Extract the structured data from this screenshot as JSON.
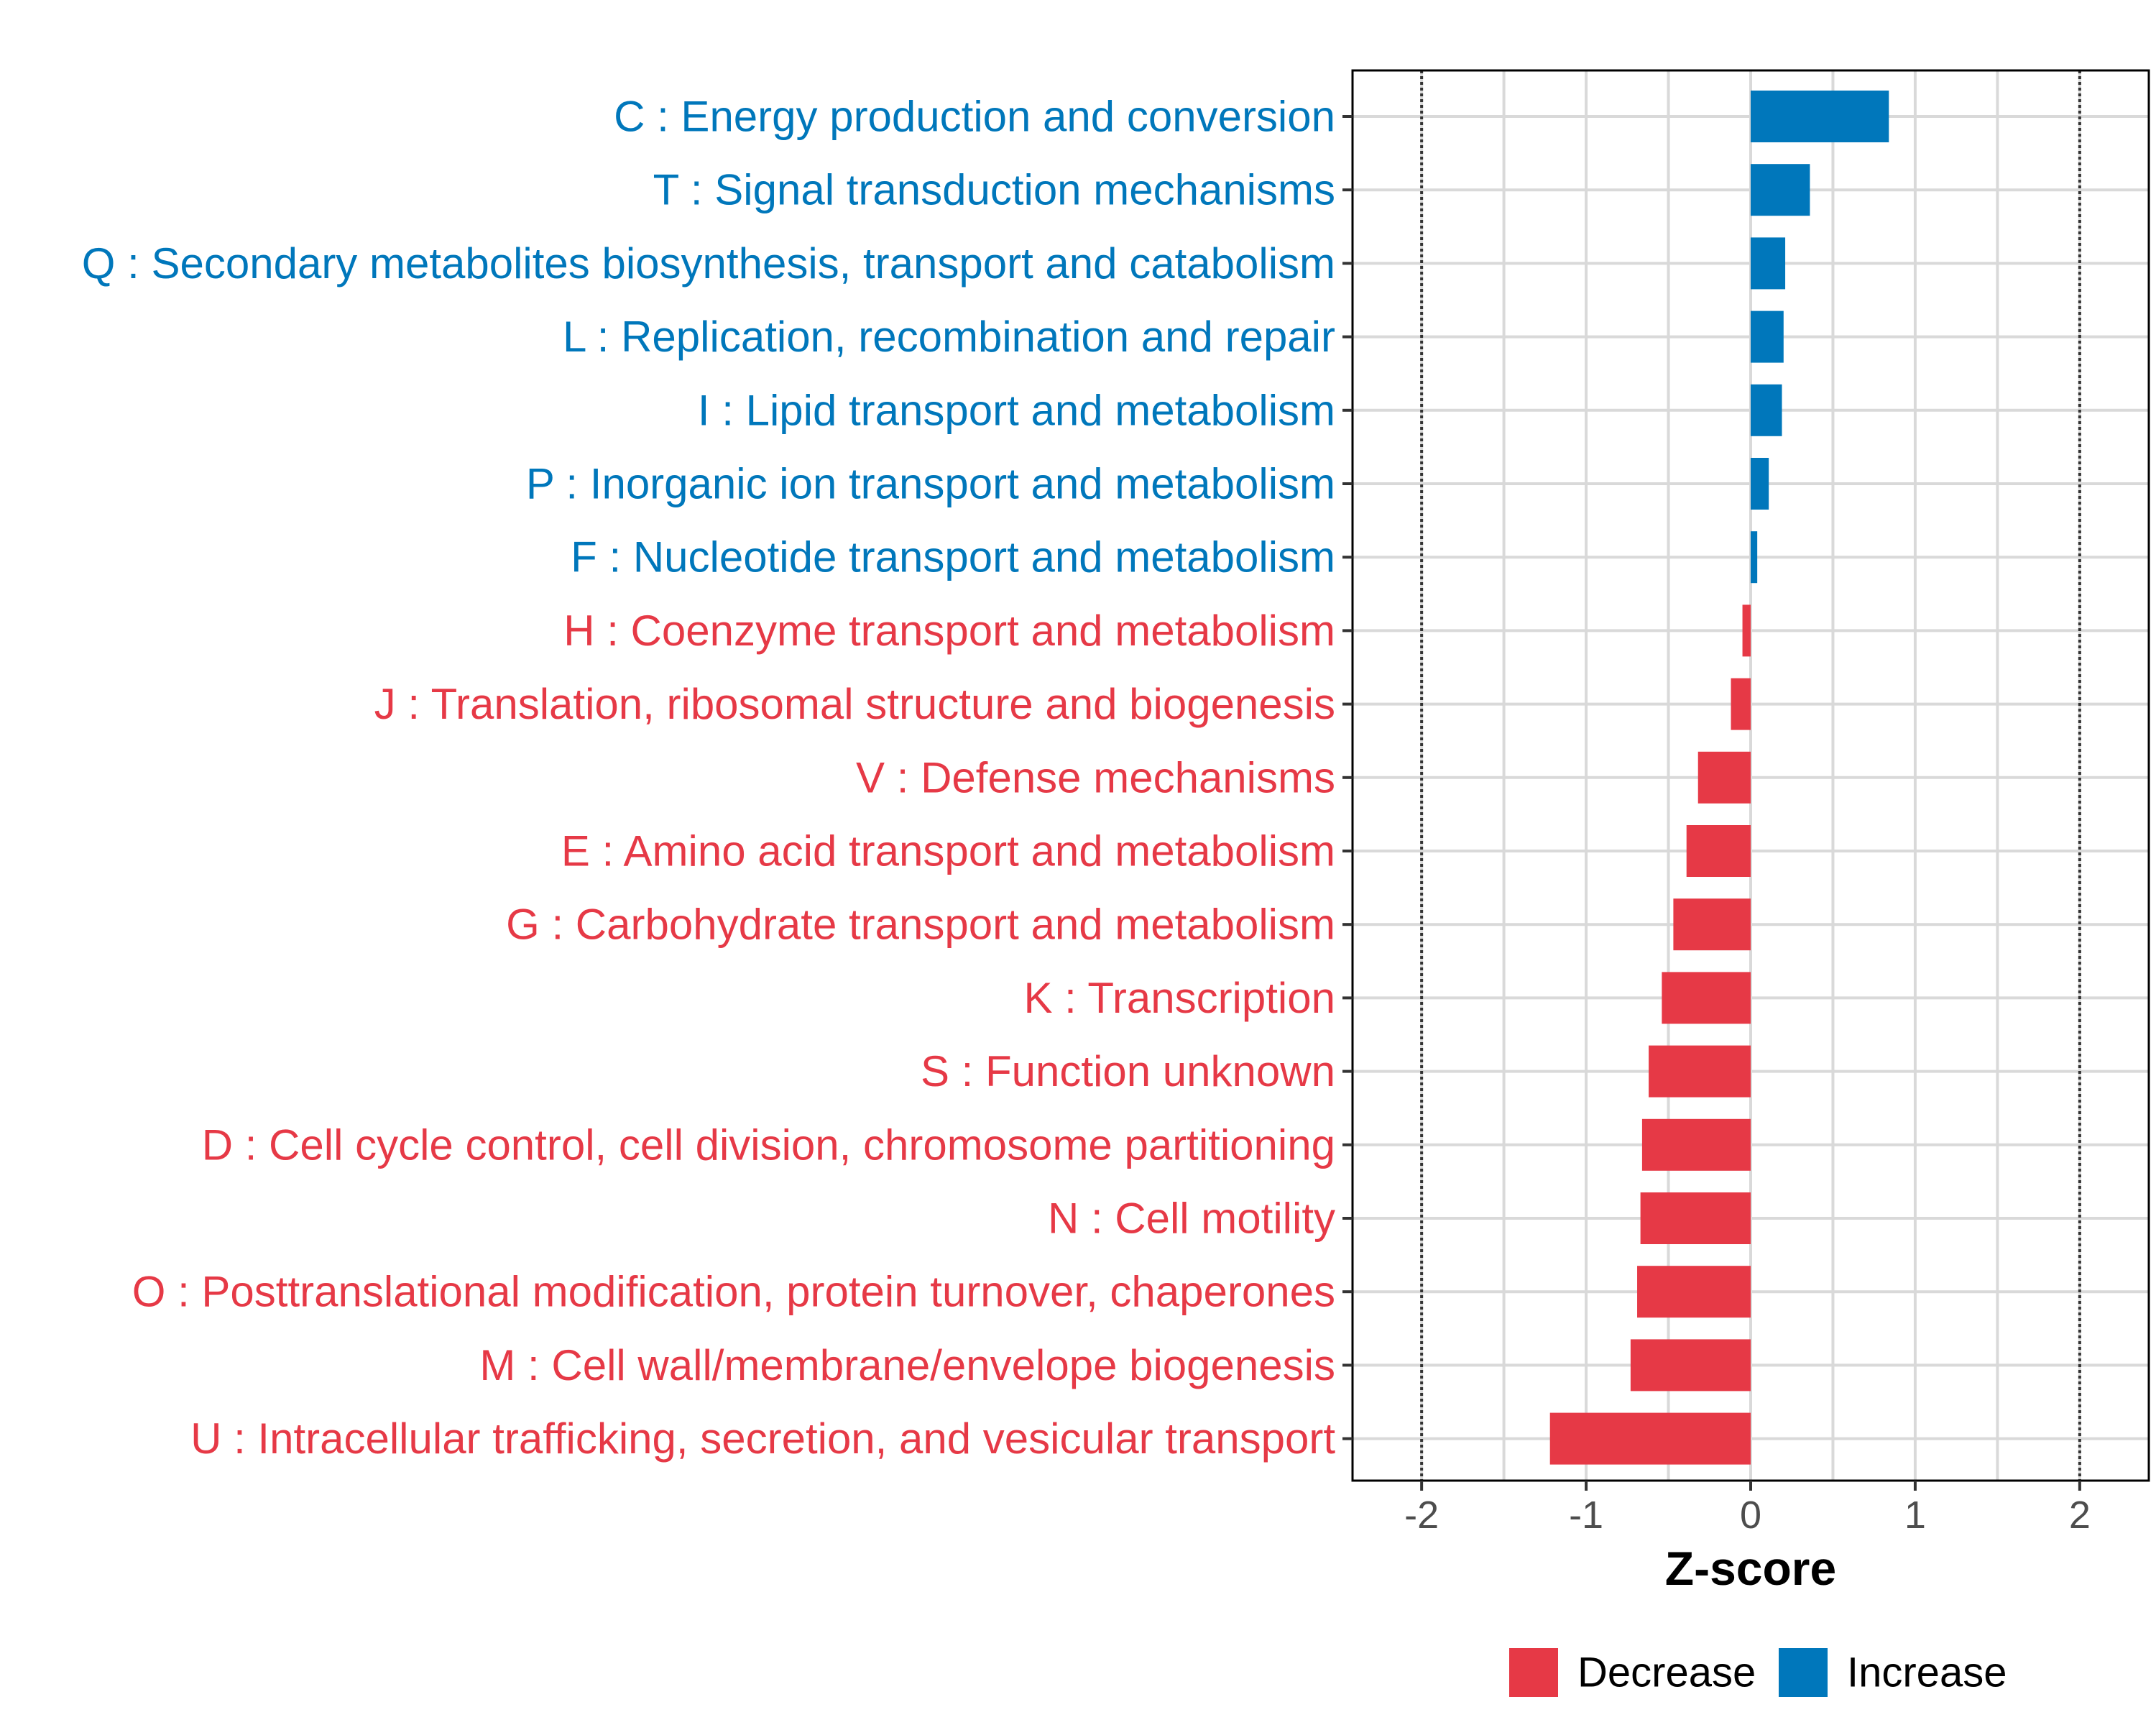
{
  "chart_data": {
    "type": "bar",
    "orientation": "horizontal",
    "xlabel": "Z-score",
    "xlim": [
      -2.42,
      2.42
    ],
    "xticks": [
      -2,
      -1,
      0,
      1,
      2
    ],
    "tick_labels": [
      "-2",
      "-1",
      "0",
      "1",
      "2"
    ],
    "reference_lines": [
      -2,
      2
    ],
    "grid": true,
    "legend_position": "bottom",
    "colors": {
      "Decrease": "#E63946",
      "Increase": "#0077BB"
    },
    "categories": [
      {
        "label": "C : Energy production and conversion",
        "value": 0.84,
        "group": "Increase"
      },
      {
        "label": "T : Signal transduction mechanisms",
        "value": 0.36,
        "group": "Increase"
      },
      {
        "label": "Q : Secondary metabolites biosynthesis, transport and catabolism",
        "value": 0.21,
        "group": "Increase"
      },
      {
        "label": "L : Replication, recombination and repair",
        "value": 0.2,
        "group": "Increase"
      },
      {
        "label": "I : Lipid transport and metabolism",
        "value": 0.19,
        "group": "Increase"
      },
      {
        "label": "P : Inorganic ion transport and metabolism",
        "value": 0.11,
        "group": "Increase"
      },
      {
        "label": "F : Nucleotide transport and metabolism",
        "value": 0.04,
        "group": "Increase"
      },
      {
        "label": "H : Coenzyme transport and metabolism",
        "value": -0.05,
        "group": "Decrease"
      },
      {
        "label": "J : Translation, ribosomal structure and biogenesis",
        "value": -0.12,
        "group": "Decrease"
      },
      {
        "label": "V : Defense mechanisms",
        "value": -0.32,
        "group": "Decrease"
      },
      {
        "label": "E : Amino acid transport and metabolism",
        "value": -0.39,
        "group": "Decrease"
      },
      {
        "label": "G : Carbohydrate transport and metabolism",
        "value": -0.47,
        "group": "Decrease"
      },
      {
        "label": "K : Transcription",
        "value": -0.54,
        "group": "Decrease"
      },
      {
        "label": "S : Function unknown",
        "value": -0.62,
        "group": "Decrease"
      },
      {
        "label": "D : Cell cycle control, cell division, chromosome partitioning",
        "value": -0.66,
        "group": "Decrease"
      },
      {
        "label": "N : Cell motility",
        "value": -0.67,
        "group": "Decrease"
      },
      {
        "label": "O : Posttranslational modification, protein turnover, chaperones",
        "value": -0.69,
        "group": "Decrease"
      },
      {
        "label": "M : Cell wall/membrane/envelope biogenesis",
        "value": -0.73,
        "group": "Decrease"
      },
      {
        "label": "U : Intracellular trafficking, secretion, and vesicular transport",
        "value": -1.22,
        "group": "Decrease"
      }
    ],
    "legend": [
      {
        "label": "Decrease",
        "color": "#E63946"
      },
      {
        "label": "Increase",
        "color": "#0077BB"
      }
    ]
  }
}
